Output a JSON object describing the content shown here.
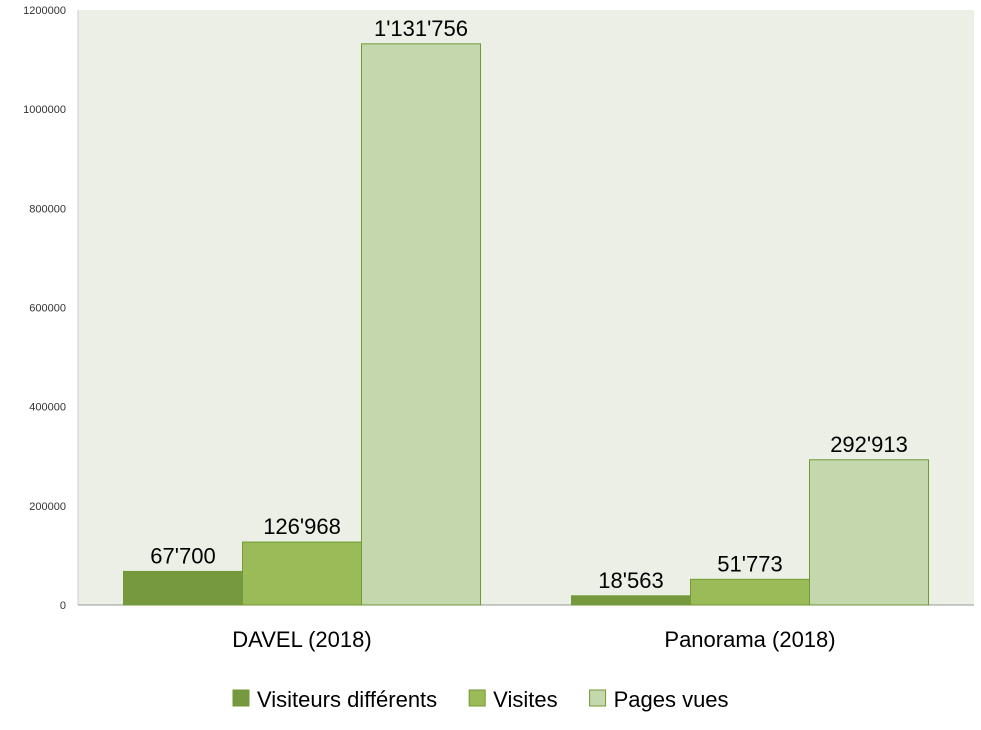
{
  "chart_data": {
    "type": "bar",
    "categories": [
      "DAVEL (2018)",
      "Panorama (2018)"
    ],
    "series": [
      {
        "name": "Visiteurs différents",
        "color": "#76993f",
        "values": [
          67700,
          18563
        ],
        "labels": [
          "67'700",
          "18'563"
        ]
      },
      {
        "name": "Visites",
        "color": "#9bbb59",
        "values": [
          126968,
          51773
        ],
        "labels": [
          "126'968",
          "51'773"
        ]
      },
      {
        "name": "Pages vues",
        "color": "#c5d7ad",
        "values": [
          1131756,
          292913
        ],
        "labels": [
          "1'131'756",
          "292'913"
        ]
      }
    ],
    "ylim": [
      0,
      1200000
    ],
    "yticks": [
      0,
      200000,
      400000,
      600000,
      800000,
      1000000,
      1200000
    ],
    "ytick_labels": [
      "0",
      "200000",
      "400000",
      "600000",
      "800000",
      "1000000",
      "1200000"
    ],
    "legend_position": "bottom",
    "grid": false,
    "plot_background": "#ecefe5",
    "bar_outline": "#6f9a35"
  }
}
